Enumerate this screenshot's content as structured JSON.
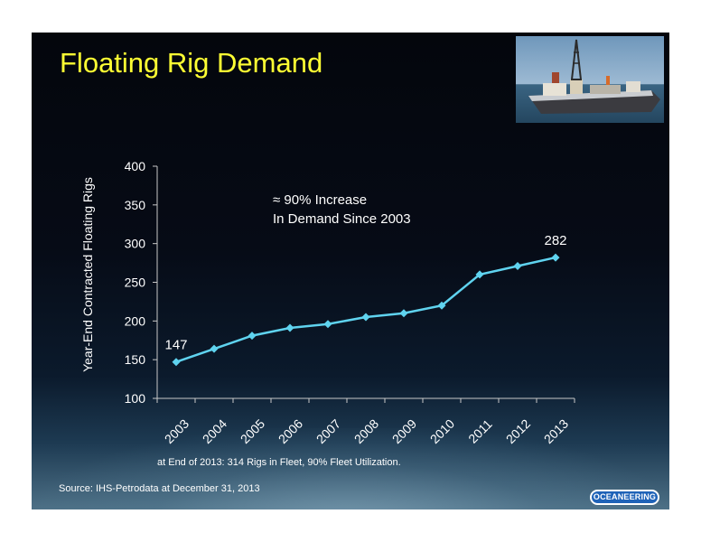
{
  "slide": {
    "title": "Floating Rig Demand",
    "footnote": "at End of 2013:  314 Rigs in Fleet, 90% Fleet Utilization.",
    "source": "Source:  IHS-Petrodata at December 31, 2013",
    "logo_text": "OCEANEERING"
  },
  "chart_data": {
    "type": "line",
    "title": "",
    "xlabel": "",
    "ylabel": "Year-End Contracted Floating Rigs",
    "categories": [
      "2003",
      "2004",
      "2005",
      "2006",
      "2007",
      "2008",
      "2009",
      "2010",
      "2011",
      "2012",
      "2013"
    ],
    "series": [
      {
        "values": [
          147,
          164,
          181,
          191,
          196,
          205,
          210,
          220,
          260,
          271,
          282
        ],
        "color": "#5fd3ef"
      }
    ],
    "ylim": [
      100,
      400
    ],
    "yticks": [
      "100",
      "150",
      "200",
      "250",
      "300",
      "350",
      "400"
    ],
    "data_labels": [
      {
        "text": "147",
        "index": 0
      },
      {
        "text": "282",
        "index": 10
      }
    ],
    "annotation": [
      "≈ 90% Increase",
      "In Demand Since 2003"
    ],
    "grid": false,
    "legend": "none"
  }
}
